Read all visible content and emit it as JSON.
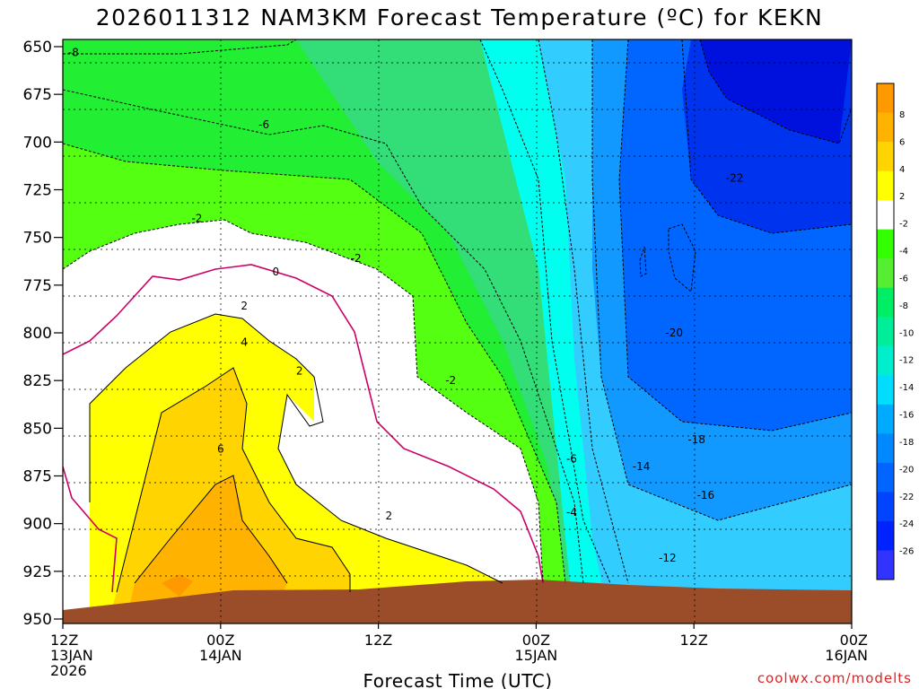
{
  "chart_data": {
    "type": "contour",
    "title": "2026011312 NAM3KM Forecast Temperature (ºC) for KEKN",
    "xlabel": "Forecast Time (UTC)",
    "ylabel": "",
    "watermark": "coolwx.com/modelts",
    "x_hours": [
      0,
      60
    ],
    "y_range": [
      650,
      950
    ],
    "y_ticks": [
      "650",
      "675",
      "700",
      "725",
      "750",
      "775",
      "800",
      "825",
      "850",
      "875",
      "900",
      "925",
      "950"
    ],
    "x_ticks": [
      {
        "hour": 0,
        "lines": [
          "12Z",
          "13JAN",
          "2026"
        ]
      },
      {
        "hour": 12,
        "lines": [
          "00Z",
          "14JAN"
        ]
      },
      {
        "hour": 24,
        "lines": [
          "12Z"
        ]
      },
      {
        "hour": 36,
        "lines": [
          "00Z",
          "15JAN"
        ]
      },
      {
        "hour": 48,
        "lines": [
          "12Z"
        ]
      },
      {
        "hour": 60,
        "lines": [
          "00Z",
          "16JAN"
        ]
      }
    ],
    "colorbar": {
      "labels": [
        "8",
        "6",
        "4",
        "2",
        "-2",
        "-4",
        "-6",
        "-8",
        "-10",
        "-12",
        "-14",
        "-16",
        "-18",
        "-20",
        "-22",
        "-24",
        "-26"
      ],
      "colors": [
        "#ff9900",
        "#ffb300",
        "#ffd400",
        "#ffff00",
        "#ffffff",
        "#33ff00",
        "#55ee33",
        "#00ee66",
        "#00ee99",
        "#00eecc",
        "#00ddff",
        "#00aaff",
        "#0088ff",
        "#0066ff",
        "#0044ff",
        "#0022ff",
        "#3333ff"
      ]
    },
    "contour_labels": [
      {
        "text": "-8",
        "hour": 0.8,
        "p": 653
      },
      {
        "text": "-6",
        "hour": 15.3,
        "p": 691
      },
      {
        "text": "-2",
        "hour": 10.2,
        "p": 740
      },
      {
        "text": "-2",
        "hour": 22.3,
        "p": 761
      },
      {
        "text": "0",
        "hour": 16.2,
        "p": 768
      },
      {
        "text": "2",
        "hour": 13.8,
        "p": 786
      },
      {
        "text": "4",
        "hour": 13.8,
        "p": 805
      },
      {
        "text": "2",
        "hour": 18.0,
        "p": 820
      },
      {
        "text": "-2",
        "hour": 29.5,
        "p": 825
      },
      {
        "text": "6",
        "hour": 12.0,
        "p": 861
      },
      {
        "text": "-6",
        "hour": 38.7,
        "p": 866
      },
      {
        "text": "-4",
        "hour": 38.7,
        "p": 894
      },
      {
        "text": "2",
        "hour": 24.8,
        "p": 896
      },
      {
        "text": "-14",
        "hour": 44.0,
        "p": 870
      },
      {
        "text": "-16",
        "hour": 48.9,
        "p": 885
      },
      {
        "text": "-18",
        "hour": 48.2,
        "p": 856
      },
      {
        "text": "-20",
        "hour": 46.5,
        "p": 800
      },
      {
        "text": "-22",
        "hour": 51.1,
        "p": 719
      },
      {
        "text": "-12",
        "hour": 46.0,
        "p": 918
      }
    ]
  }
}
